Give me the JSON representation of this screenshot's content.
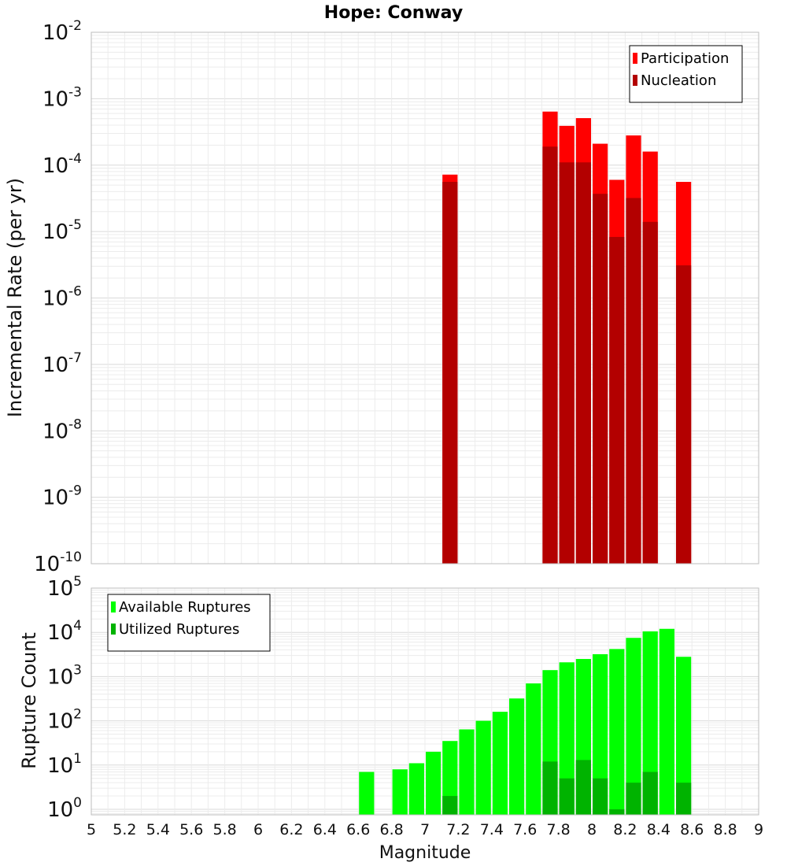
{
  "chart_data": [
    {
      "type": "bar",
      "title": "Hope: Conway",
      "ylabel": "Incremental Rate (per yr)",
      "xlabel": "",
      "y_scale": "log",
      "ylim": [
        1e-10,
        0.01
      ],
      "xlim": [
        5,
        9
      ],
      "bar_width": 0.1,
      "grid": true,
      "legend_position": "top-right",
      "series": [
        {
          "name": "Participation",
          "color": "#ff0000",
          "x": [
            7.1,
            7.7,
            7.8,
            7.9,
            8.0,
            8.1,
            8.2,
            8.3,
            8.5
          ],
          "values": [
            7.2e-05,
            0.00064,
            0.00039,
            0.00051,
            0.00021,
            6e-05,
            0.00028,
            0.00016,
            5.6e-05
          ]
        },
        {
          "name": "Nucleation",
          "color": "#b30000",
          "x": [
            7.1,
            7.7,
            7.8,
            7.9,
            8.0,
            8.1,
            8.2,
            8.3,
            8.5
          ],
          "values": [
            5.6e-05,
            0.00019,
            0.00011,
            0.00011,
            3.7e-05,
            8.3e-06,
            3.2e-05,
            1.4e-05,
            3.1e-06
          ]
        }
      ]
    },
    {
      "type": "bar",
      "title": "",
      "ylabel": "Rupture Count",
      "xlabel": "Magnitude",
      "y_scale": "log",
      "ylim": [
        0.75,
        100000.0
      ],
      "xlim": [
        5,
        9
      ],
      "bar_width": 0.1,
      "grid": true,
      "legend_position": "top-left",
      "series": [
        {
          "name": "Available Ruptures",
          "color": "#00ff00",
          "x": [
            6.6,
            6.8,
            6.9,
            7.0,
            7.1,
            7.2,
            7.3,
            7.4,
            7.5,
            7.6,
            7.7,
            7.8,
            7.9,
            8.0,
            8.1,
            8.2,
            8.3,
            8.4,
            8.5
          ],
          "values": [
            7,
            8,
            11,
            20,
            35,
            64,
            100,
            160,
            320,
            700,
            1400,
            2100,
            2500,
            3200,
            4200,
            7500,
            10500,
            12000,
            2800
          ]
        },
        {
          "name": "Utilized Ruptures",
          "color": "#00b300",
          "x": [
            7.1,
            7.7,
            7.8,
            7.9,
            8.0,
            8.1,
            8.2,
            8.3,
            8.5
          ],
          "values": [
            2,
            12,
            5,
            13,
            5,
            1,
            4,
            7,
            4
          ]
        }
      ]
    }
  ],
  "x_ticks": [
    "5",
    "5.2",
    "5.4",
    "5.6",
    "5.8",
    "6",
    "6.2",
    "6.4",
    "6.6",
    "6.8",
    "7",
    "7.2",
    "7.4",
    "7.6",
    "7.8",
    "8",
    "8.2",
    "8.4",
    "8.6",
    "8.8",
    "9"
  ],
  "top_y_ticks": [
    {
      "base": "10",
      "exp": "-2"
    },
    {
      "base": "10",
      "exp": "-3"
    },
    {
      "base": "10",
      "exp": "-4"
    },
    {
      "base": "10",
      "exp": "-5"
    },
    {
      "base": "10",
      "exp": "-6"
    },
    {
      "base": "10",
      "exp": "-7"
    },
    {
      "base": "10",
      "exp": "-8"
    },
    {
      "base": "10",
      "exp": "-9"
    },
    {
      "base": "10",
      "exp": "-10"
    }
  ],
  "bottom_y_ticks": [
    {
      "base": "10",
      "exp": "5"
    },
    {
      "base": "10",
      "exp": "4"
    },
    {
      "base": "10",
      "exp": "3"
    },
    {
      "base": "10",
      "exp": "2"
    },
    {
      "base": "10",
      "exp": "1"
    },
    {
      "base": "10",
      "exp": "0"
    }
  ]
}
